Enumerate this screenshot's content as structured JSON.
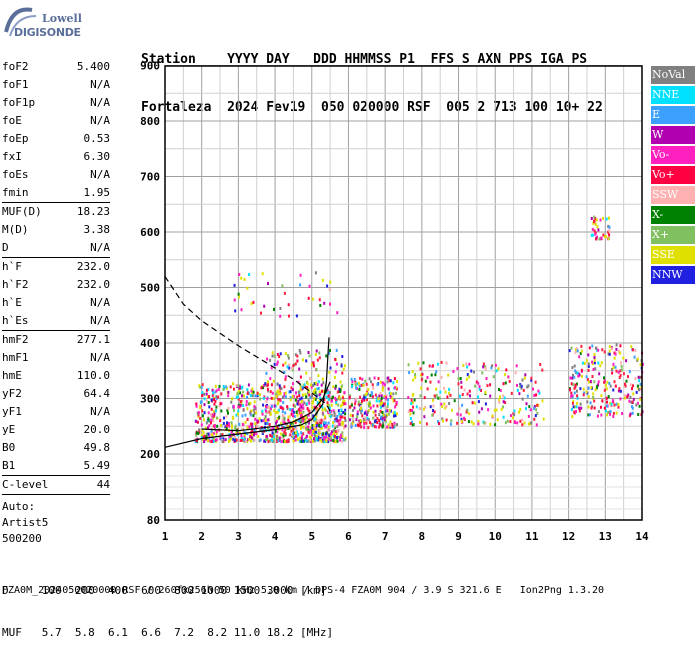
{
  "logo": {
    "line1": "Lowell",
    "line2": "DIGISONDE"
  },
  "header": {
    "row1": "Station    YYYY DAY   DDD HHMMSS P1  FFS S AXN PPS IGA PS",
    "row2": "Fortaleza  2024 Fev19  050 020000 RSF  005 2 713 100 10+ 22"
  },
  "params": {
    "group1": [
      {
        "k": "foF2",
        "v": "5.400"
      },
      {
        "k": "foF1",
        "v": "N/A"
      },
      {
        "k": "foF1p",
        "v": "N/A"
      },
      {
        "k": "foE",
        "v": "N/A"
      },
      {
        "k": "foEp",
        "v": "0.53"
      },
      {
        "k": "fxI",
        "v": "6.30"
      },
      {
        "k": "foEs",
        "v": "N/A"
      },
      {
        "k": "fmin",
        "v": "1.95"
      }
    ],
    "group2": [
      {
        "k": "MUF(D)",
        "v": "18.23"
      },
      {
        "k": "M(D)",
        "v": "3.38"
      },
      {
        "k": "D",
        "v": "N/A"
      }
    ],
    "group3": [
      {
        "k": "h`F",
        "v": "232.0"
      },
      {
        "k": "h`F2",
        "v": "232.0"
      },
      {
        "k": "h`E",
        "v": "N/A"
      },
      {
        "k": "h`Es",
        "v": "N/A"
      }
    ],
    "group4": [
      {
        "k": "hmF2",
        "v": "277.1"
      },
      {
        "k": "hmF1",
        "v": "N/A"
      },
      {
        "k": "hmE",
        "v": "110.0"
      },
      {
        "k": "yF2",
        "v": "64.4"
      },
      {
        "k": "yF1",
        "v": "N/A"
      },
      {
        "k": "yE",
        "v": "20.0"
      },
      {
        "k": "B0",
        "v": "49.8"
      },
      {
        "k": "B1",
        "v": "5.49"
      }
    ],
    "group5": [
      {
        "k": "C-level",
        "v": "44"
      }
    ],
    "auto_label": "Auto:",
    "artist": "Artist5",
    "artist_id": "500200"
  },
  "legend": [
    {
      "label": "NoVal",
      "color": "#808080"
    },
    {
      "label": "NNE",
      "color": "#00e0ff"
    },
    {
      "label": "E",
      "color": "#3ca0ff"
    },
    {
      "label": "W",
      "color": "#b000b0"
    },
    {
      "label": "Vo-",
      "color": "#ff20c0"
    },
    {
      "label": "Vo+",
      "color": "#ff0040"
    },
    {
      "label": "SSW",
      "color": "#ffb0b0"
    },
    {
      "label": "X-",
      "color": "#008000"
    },
    {
      "label": "X+",
      "color": "#80c060"
    },
    {
      "label": "SSE",
      "color": "#e0e000"
    },
    {
      "label": "NNW",
      "color": "#2020e0"
    }
  ],
  "footer": {
    "row1": "D     100  200  400  600  800 1000 1500 3000 [km]",
    "row2": "MUF   5.7  5.8  6.1  6.6  7.2  8.2 11.0 18.2 [MHz]",
    "row3": "FZA0M_2024050020000.RSF / 260fx256h 50 kHz 5.0 km / DPS-4 FZA0M 904 / 3.9 S 321.6 E   Ion2Png 1.3.20"
  },
  "chart_data": {
    "type": "scatter",
    "xlim": [
      1,
      14
    ],
    "ylim": [
      80,
      900
    ],
    "xticks": [
      1,
      2,
      3,
      4,
      5,
      6,
      7,
      8,
      9,
      10,
      11,
      12,
      13,
      14
    ],
    "yticks": [
      80,
      200,
      300,
      400,
      500,
      600,
      700,
      800,
      900
    ],
    "grid": true,
    "echo_clusters": [
      {
        "x_range": [
          1.8,
          5.9
        ],
        "y_range": [
          225,
          330
        ],
        "density": "high"
      },
      {
        "x_range": [
          3.7,
          5.9
        ],
        "y_range": [
          230,
          390
        ],
        "density": "medium"
      },
      {
        "x_range": [
          6.0,
          7.3
        ],
        "y_range": [
          250,
          340
        ],
        "density": "medium"
      },
      {
        "x_range": [
          7.6,
          11.3
        ],
        "y_range": [
          255,
          370
        ],
        "density": "medium"
      },
      {
        "x_range": [
          12.0,
          14.0
        ],
        "y_range": [
          270,
          400
        ],
        "density": "medium"
      },
      {
        "x_range": [
          2.8,
          5.7
        ],
        "y_range": [
          450,
          530
        ],
        "density": "low"
      },
      {
        "x_range": [
          12.6,
          13.1
        ],
        "y_range": [
          590,
          630
        ],
        "density": "low"
      }
    ],
    "traced_curves": {
      "ordinary_solid": [
        [
          1.0,
          212
        ],
        [
          2.0,
          228
        ],
        [
          3.0,
          236
        ],
        [
          4.0,
          244
        ],
        [
          4.7,
          252
        ],
        [
          5.0,
          262
        ],
        [
          5.3,
          290
        ],
        [
          5.4,
          330
        ],
        [
          5.45,
          390
        ],
        [
          5.47,
          410
        ]
      ],
      "xtrace_solid": [
        [
          2.0,
          245
        ],
        [
          3.0,
          242
        ],
        [
          4.0,
          250
        ],
        [
          4.5,
          258
        ],
        [
          5.0,
          275
        ],
        [
          5.3,
          300
        ],
        [
          5.5,
          330
        ]
      ],
      "profile_dashed": [
        [
          1.0,
          520
        ],
        [
          1.5,
          470
        ],
        [
          2.0,
          440
        ],
        [
          3.0,
          395
        ],
        [
          4.0,
          355
        ],
        [
          4.5,
          335
        ],
        [
          5.0,
          310
        ],
        [
          5.4,
          290
        ],
        [
          5.5,
          277
        ]
      ]
    }
  }
}
